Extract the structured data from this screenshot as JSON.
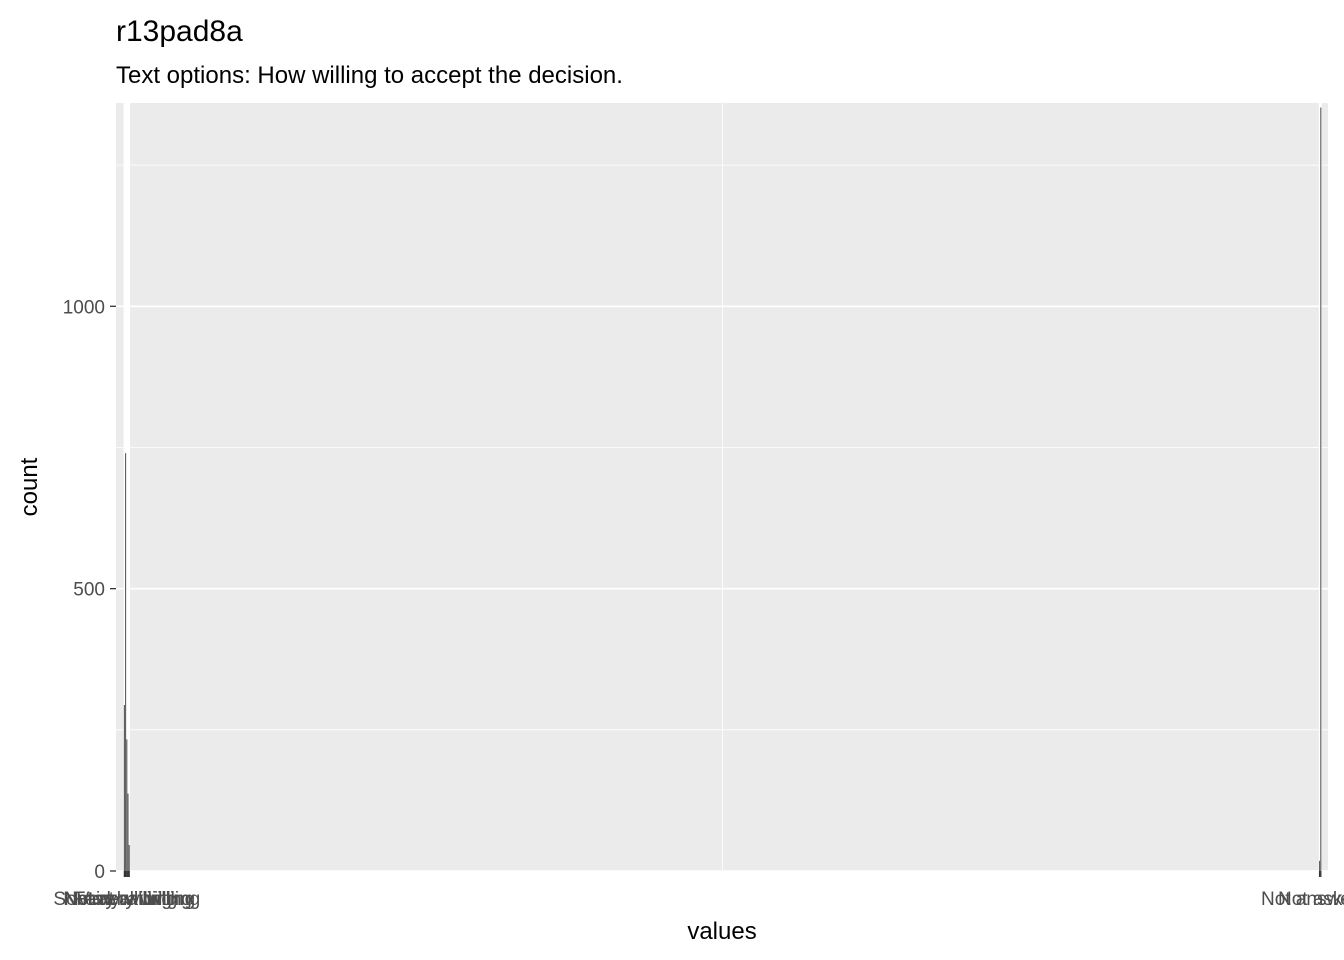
{
  "chart_data": {
    "type": "bar",
    "title": "r13pad8a",
    "subtitle": "Text options: How willing to accept the decision.",
    "xlabel": "values",
    "ylabel": "count",
    "ylim": [
      0,
      1360
    ],
    "xlim": [
      -6,
      1004
    ],
    "y_ticks": [
      0,
      500,
      1000
    ],
    "grid": true,
    "legend": "none",
    "colors": {
      "bar": "#595959",
      "panel": "#ebebeb",
      "grid": "#ffffff"
    },
    "bars": [
      {
        "label": "Very willing",
        "x": 1,
        "value": 294
      },
      {
        "label": "Fairly willing",
        "x": 2,
        "value": 740
      },
      {
        "label": "Somewhat willing",
        "x": 3,
        "value": 233
      },
      {
        "label": "Not very willing",
        "x": 4,
        "value": 137
      },
      {
        "label": "Not at all willing",
        "x": 5,
        "value": 46
      },
      {
        "label": "Not answered",
        "x": 997,
        "value": 18
      },
      {
        "label": "Not asked",
        "x": 998,
        "value": 1352
      }
    ]
  }
}
